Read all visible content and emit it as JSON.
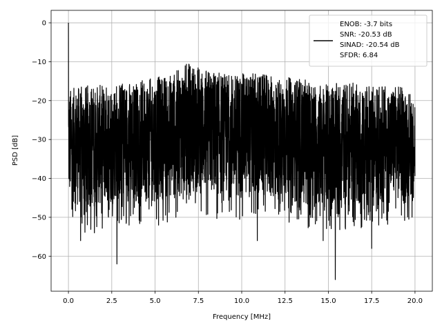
{
  "chart_data": {
    "type": "line",
    "title": "",
    "xlabel": "Frequency [MHz]",
    "ylabel": "PSD [dB]",
    "xlim": [
      -1.0,
      21.0
    ],
    "ylim": [
      -69,
      3.2
    ],
    "grid": true,
    "xticks": [
      0.0,
      2.5,
      5.0,
      7.5,
      10.0,
      12.5,
      15.0,
      17.5,
      20.0
    ],
    "xtick_labels": [
      "0.0",
      "2.5",
      "5.0",
      "7.5",
      "10.0",
      "12.5",
      "15.0",
      "17.5",
      "20.0"
    ],
    "yticks": [
      0,
      -10,
      -20,
      -30,
      -40,
      -50,
      -60
    ],
    "ytick_labels": [
      "0",
      "−10",
      "−20",
      "−30",
      "−40",
      "−50",
      "−60"
    ],
    "legend": {
      "placement": "top-right",
      "entries": [
        "ENOB: -3.7 bits",
        "SNR: -20.53 dB",
        "SINAD: -20.54 dB",
        "SFDR: 6.84"
      ]
    },
    "series": [
      {
        "name": "PSD",
        "color": "#000000",
        "peak": {
          "x": 0.0,
          "y": 0.0
        },
        "envelope_x": [
          0,
          1,
          2,
          3,
          4,
          5,
          6,
          7,
          8,
          9,
          10,
          11,
          12,
          13,
          14,
          15,
          16,
          17,
          18,
          19,
          20
        ],
        "envelope_upper": [
          -17,
          -16,
          -16,
          -15,
          -15,
          -14,
          -13,
          -10,
          -12,
          -13,
          -13,
          -13,
          -14,
          -14,
          -15,
          -16,
          -15,
          -16,
          -16,
          -16,
          -18
        ],
        "envelope_lower": [
          -46,
          -48,
          -47,
          -46,
          -46,
          -46,
          -45,
          -44,
          -44,
          -45,
          -45,
          -45,
          -46,
          -46,
          -47,
          -48,
          -47,
          -47,
          -47,
          -46,
          -44
        ],
        "notable_minima": [
          {
            "x": 0.7,
            "y": -56
          },
          {
            "x": 1.5,
            "y": -54
          },
          {
            "x": 2.8,
            "y": -62
          },
          {
            "x": 3.5,
            "y": -52
          },
          {
            "x": 5.2,
            "y": -52
          },
          {
            "x": 6.2,
            "y": -50
          },
          {
            "x": 10.9,
            "y": -56
          },
          {
            "x": 14.7,
            "y": -56
          },
          {
            "x": 15.4,
            "y": -66
          },
          {
            "x": 17.5,
            "y": -58
          }
        ]
      }
    ]
  }
}
